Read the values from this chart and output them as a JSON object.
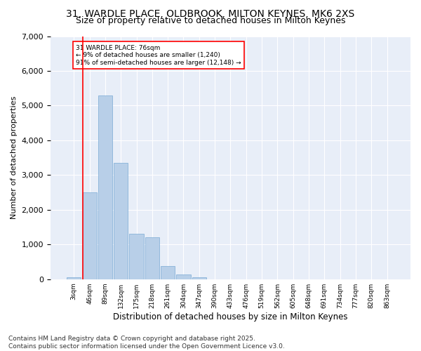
{
  "title_line1": "31, WARDLE PLACE, OLDBROOK, MILTON KEYNES, MK6 2XS",
  "title_line2": "Size of property relative to detached houses in Milton Keynes",
  "xlabel": "Distribution of detached houses by size in Milton Keynes",
  "ylabel": "Number of detached properties",
  "categories": [
    "3sqm",
    "46sqm",
    "89sqm",
    "132sqm",
    "175sqm",
    "218sqm",
    "261sqm",
    "304sqm",
    "347sqm",
    "390sqm",
    "433sqm",
    "476sqm",
    "519sqm",
    "562sqm",
    "605sqm",
    "648sqm",
    "691sqm",
    "734sqm",
    "777sqm",
    "820sqm",
    "863sqm"
  ],
  "values": [
    50,
    2500,
    5300,
    3350,
    1300,
    1200,
    380,
    130,
    50,
    0,
    0,
    0,
    0,
    0,
    0,
    0,
    0,
    0,
    0,
    0,
    0
  ],
  "bar_color": "#b8cfe8",
  "bar_edge_color": "#7aaad4",
  "vline_color": "red",
  "vline_x": 0.555,
  "annotation_title": "31 WARDLE PLACE: 76sqm",
  "annotation_line2": "← 9% of detached houses are smaller (1,240)",
  "annotation_line3": "91% of semi-detached houses are larger (12,148) →",
  "annotation_box_color": "white",
  "annotation_edge_color": "red",
  "ylim": [
    0,
    7000
  ],
  "yticks": [
    0,
    1000,
    2000,
    3000,
    4000,
    5000,
    6000,
    7000
  ],
  "bg_color": "#e8eef8",
  "footer_line1": "Contains HM Land Registry data © Crown copyright and database right 2025.",
  "footer_line2": "Contains public sector information licensed under the Open Government Licence v3.0.",
  "title_fontsize": 10,
  "subtitle_fontsize": 9,
  "footer_fontsize": 6.5,
  "ylabel_fontsize": 8,
  "xlabel_fontsize": 8.5
}
